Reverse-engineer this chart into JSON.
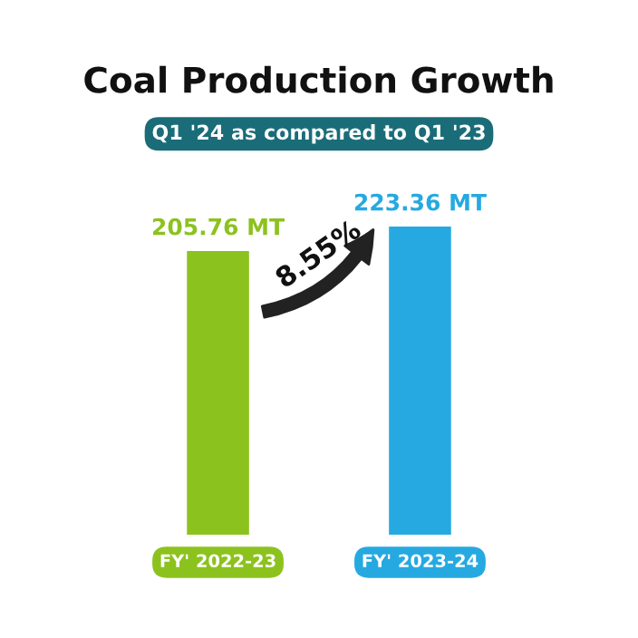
{
  "chart_data": {
    "type": "bar",
    "title": "Coal Production Growth",
    "subtitle": "Q1 '24 as compared to Q1 '23",
    "categories": [
      "FY' 2022-23",
      "FY' 2023-24"
    ],
    "values": [
      205.76,
      223.36
    ],
    "value_labels": [
      "205.76 MT",
      "223.36 MT"
    ],
    "colors": [
      "#8cc21e",
      "#26a9e0"
    ],
    "annotations": [
      "8.55%"
    ],
    "grid": false,
    "legend": false
  }
}
